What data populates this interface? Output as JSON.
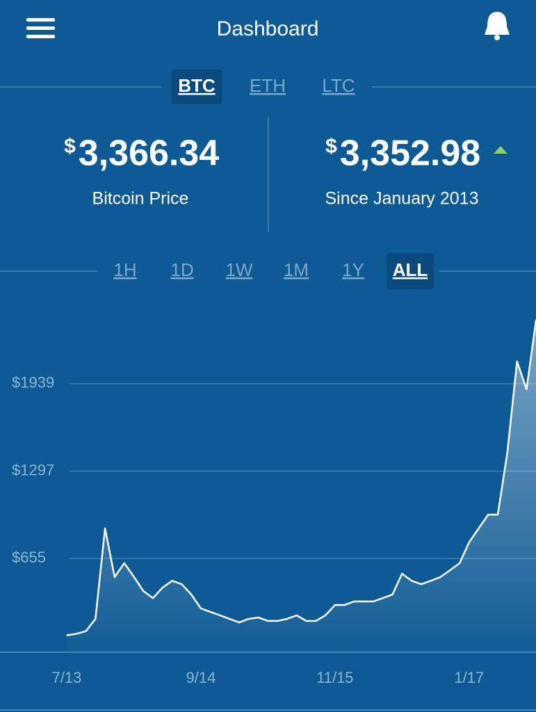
{
  "header": {
    "title": "Dashboard"
  },
  "currency_tabs": {
    "items": [
      "BTC",
      "ETH",
      "LTC"
    ],
    "selected_index": 0
  },
  "stats": [
    {
      "currency": "$",
      "value": "3,366.34",
      "label": "Bitcoin Price"
    },
    {
      "currency": "$",
      "value": "3,352.98",
      "label": "Since January 2013",
      "trend": "up"
    }
  ],
  "range_tabs": {
    "items": [
      "1H",
      "1D",
      "1W",
      "1M",
      "1Y",
      "ALL"
    ],
    "selected_index": 5
  },
  "chart_data": {
    "type": "line",
    "color": "#ffffff",
    "x": [
      "7/13",
      "8/13",
      "9/13",
      "10/13",
      "11/13",
      "12/13",
      "1/14",
      "2/14",
      "3/14",
      "4/14",
      "5/14",
      "6/14",
      "7/14",
      "8/14",
      "9/14",
      "10/14",
      "11/14",
      "12/14",
      "1/15",
      "2/15",
      "3/15",
      "4/15",
      "5/15",
      "6/15",
      "7/15",
      "8/15",
      "9/15",
      "10/15",
      "11/15",
      "12/15",
      "1/16",
      "2/16",
      "3/16",
      "4/16",
      "5/16",
      "6/16",
      "7/16",
      "8/16",
      "9/16",
      "10/16",
      "11/16",
      "12/16",
      "1/17",
      "2/17",
      "3/17",
      "4/17",
      "5/17",
      "6/17",
      "7/17",
      "8/17"
    ],
    "values": [
      90,
      100,
      120,
      210,
      875,
      517,
      620,
      520,
      415,
      363,
      440,
      490,
      465,
      390,
      287,
      261,
      236,
      210,
      184,
      210,
      220,
      195,
      195,
      210,
      236,
      195,
      195,
      236,
      312,
      312,
      338,
      338,
      338,
      363,
      389,
      542,
      490,
      465,
      490,
      517,
      568,
      619,
      773,
      875,
      977,
      977,
      1438,
      2103,
      1898,
      2410
    ],
    "xticks": [
      "7/13",
      "9/14",
      "11/15",
      "1/17"
    ],
    "ylim": [
      -35,
      2690
    ],
    "yticks": [
      {
        "value": 655,
        "label": "$655"
      },
      {
        "value": 1297,
        "label": "$1297"
      },
      {
        "value": 1939,
        "label": "$1939"
      }
    ],
    "grid": true
  }
}
